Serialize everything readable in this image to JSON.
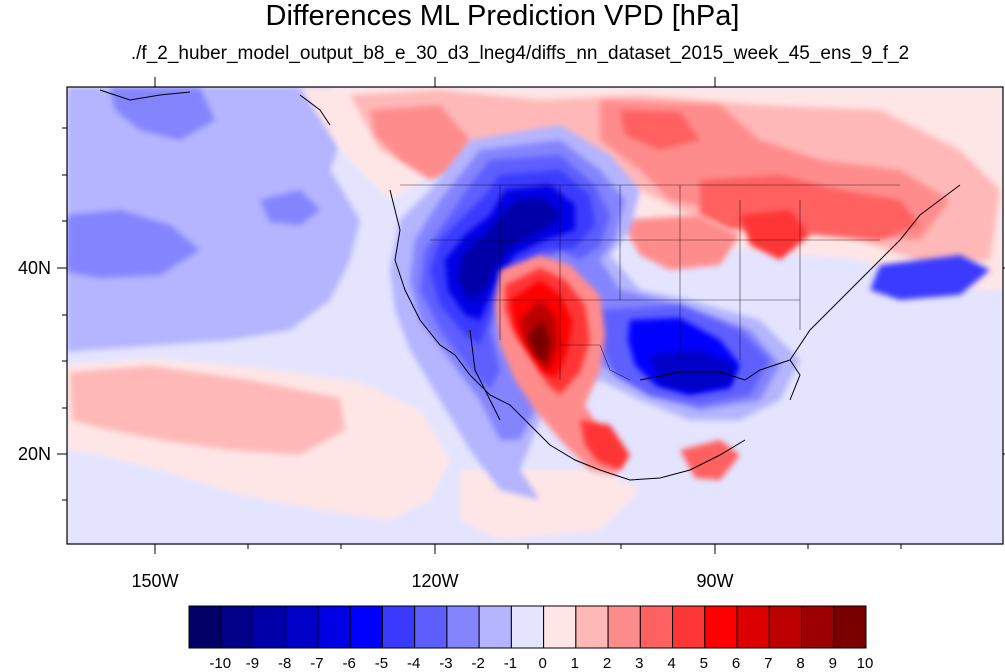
{
  "map": {
    "title": "Differences ML Prediction VPD [hPa]",
    "subtitle": "./f_2_huber_model_output_b8_e_30_d3_lneg4/diffs_nn_dataset_2015_week_45_ens_9_f_2",
    "lat_labels": [
      "40N",
      "20N"
    ],
    "lon_labels": [
      "150W",
      "120W",
      "90W"
    ]
  },
  "colorbar": {
    "labels": [
      "-10",
      "-9",
      "-8",
      "-7",
      "-6",
      "-5",
      "-4",
      "-3",
      "-2",
      "-1",
      "0",
      "1",
      "2",
      "3",
      "4",
      "5",
      "6",
      "7",
      "8",
      "9",
      "10"
    ],
    "colors": [
      "#000066",
      "#000088",
      "#0000a8",
      "#0000c8",
      "#0000e4",
      "#0000ff",
      "#3a3aff",
      "#5e5eff",
      "#8484ff",
      "#b4b4ff",
      "#e4e4ff",
      "#ffe6e6",
      "#ffb8b8",
      "#ff8c8c",
      "#ff6060",
      "#ff3636",
      "#ff0000",
      "#dc0000",
      "#bc0000",
      "#9c0000",
      "#7a0000"
    ]
  }
}
